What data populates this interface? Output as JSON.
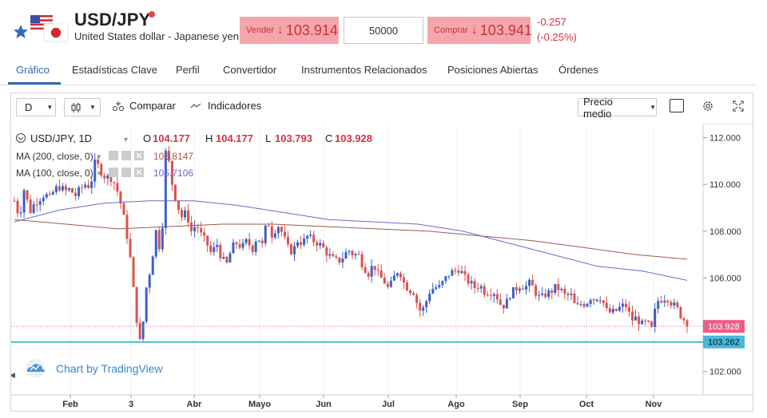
{
  "header": {
    "symbol": "USD/JPY",
    "pair_name": "United States dollar - Japanese yen",
    "sell": {
      "label": "Vender",
      "arrow": "↓",
      "price": "103.914"
    },
    "quantity": "50000",
    "buy": {
      "label": "Comprar",
      "arrow": "↓",
      "price": "103.941"
    },
    "change_abs": "-0.257",
    "change_pct": "(-0.25%)",
    "negative_color": "#d6333f"
  },
  "tabs": [
    "Gráfico",
    "Estadísticas Clave",
    "Perfil",
    "Convertidor",
    "Instrumentos Relacionados",
    "Posiciones Abiertas",
    "Órdenes"
  ],
  "toolbar": {
    "interval": "D",
    "compare": "Comparar",
    "indicators": "Indicadores",
    "price_type": "Precio medio"
  },
  "legend": {
    "symbol": "USD/JPY, 1D",
    "o_label": "O",
    "o": "104.177",
    "h_label": "H",
    "h": "104.177",
    "l_label": "L",
    "l": "103.793",
    "c_label": "C",
    "c": "103.928",
    "ma200_name": "MA (200, close, 0)",
    "ma200_val": "106.8147",
    "ma100_name": "MA (100, close, 0)",
    "ma100_val": "105.7106"
  },
  "watermark": "Chart by TradingView",
  "price_labels": {
    "last": "103.928",
    "line": "103.262"
  },
  "chart_data": {
    "type": "candlestick",
    "y_ticks": [
      "112.000",
      "110.000",
      "108.000",
      "106.000",
      "102.000"
    ],
    "x_ticks": [
      "Feb",
      "3",
      "Abr",
      "Mayo",
      "Jun",
      "Jul",
      "Ago",
      "Sep",
      "Oct",
      "Nov"
    ],
    "ylim": [
      101.0,
      112.6
    ],
    "horizontal_line": 103.262,
    "last_price": 103.928,
    "colors": {
      "up": "#3d5fc9",
      "down": "#d9534f",
      "ma200": "#9c5a48",
      "ma100": "#6b68cf",
      "hline": "#4ab8d9",
      "last_tag": "#ee5c85",
      "line_tag": "#4ab8d9"
    },
    "trend": [
      [
        109.3,
        108.6
      ],
      [
        109.9,
        108.8
      ],
      [
        109.2,
        109.4
      ],
      [
        109.6,
        109.4
      ],
      [
        109.8,
        109.9
      ],
      [
        109.7,
        109.8
      ],
      [
        109.5,
        109.8
      ],
      [
        110.0,
        109.9
      ],
      [
        111.0,
        110.6
      ],
      [
        110.3,
        110.3
      ],
      [
        110.0,
        109.2
      ],
      [
        108.2,
        106.7
      ],
      [
        104.5,
        103.0
      ],
      [
        105.5,
        106.5
      ],
      [
        108.0,
        107.0
      ],
      [
        111.8,
        110.2
      ],
      [
        109.3,
        108.6
      ],
      [
        108.8,
        108.0
      ],
      [
        108.3,
        107.8
      ],
      [
        107.5,
        107.0
      ],
      [
        107.5,
        106.8
      ],
      [
        106.6,
        107.3
      ],
      [
        107.5,
        107.3
      ],
      [
        107.6,
        107.2
      ],
      [
        107.8,
        107.4
      ],
      [
        108.5,
        107.8
      ],
      [
        108.3,
        107.9
      ],
      [
        107.3,
        107.1
      ],
      [
        107.6,
        107.5
      ],
      [
        107.8,
        107.6
      ],
      [
        107.5,
        107.3
      ],
      [
        107.0,
        106.8
      ],
      [
        106.7,
        106.9
      ],
      [
        107.2,
        107.0
      ],
      [
        107.0,
        106.5
      ],
      [
        106.2,
        106.6
      ],
      [
        106.1,
        105.9
      ],
      [
        105.5,
        106.0
      ],
      [
        106.4,
        105.8
      ],
      [
        105.5,
        105.4
      ],
      [
        104.6,
        104.7
      ],
      [
        105.4,
        105.6
      ],
      [
        105.6,
        105.9
      ],
      [
        106.2,
        106.3
      ],
      [
        106.4,
        106.0
      ],
      [
        105.8,
        105.6
      ],
      [
        105.7,
        105.4
      ],
      [
        105.4,
        105.4
      ],
      [
        104.9,
        104.8
      ],
      [
        105.3,
        105.5
      ],
      [
        105.7,
        105.6
      ],
      [
        105.8,
        105.4
      ],
      [
        105.1,
        105.3
      ],
      [
        105.4,
        105.6
      ],
      [
        105.5,
        105.2
      ],
      [
        105.3,
        104.7
      ],
      [
        104.9,
        104.9
      ],
      [
        105.2,
        105.1
      ],
      [
        105.2,
        104.6
      ],
      [
        104.5,
        104.6
      ],
      [
        104.8,
        104.8
      ],
      [
        104.2,
        104.3
      ],
      [
        104.0,
        104.1
      ],
      [
        103.8,
        105.0
      ],
      [
        105.1,
        105.2
      ],
      [
        104.9,
        104.7
      ],
      [
        104.3,
        104.1
      ]
    ],
    "ma200": [
      [
        108.5,
        108.3
      ],
      [
        108.1,
        108.2
      ],
      [
        108.3,
        108.3
      ],
      [
        108.2,
        108.1
      ],
      [
        108.0,
        107.8
      ],
      [
        107.6,
        107.3
      ],
      [
        107.0,
        106.8
      ]
    ],
    "ma100": [
      [
        108.4,
        108.9
      ],
      [
        109.2,
        109.3
      ],
      [
        109.3,
        109.1
      ],
      [
        108.8,
        108.5
      ],
      [
        108.4,
        108.3
      ],
      [
        108.0,
        107.5
      ],
      [
        107.0,
        106.5
      ],
      [
        106.3,
        105.9
      ]
    ]
  }
}
